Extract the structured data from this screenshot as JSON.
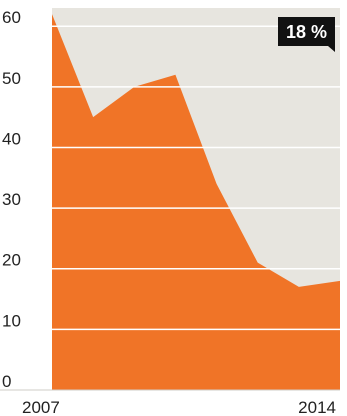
{
  "chart_data": {
    "type": "area",
    "x": [
      2007,
      2008,
      2009,
      2010,
      2011,
      2012,
      2013,
      2014
    ],
    "series": [
      {
        "values": [
          62,
          45,
          50,
          52,
          34,
          21,
          17,
          18
        ]
      }
    ],
    "xlim": [
      2007,
      2014
    ],
    "ylim": [
      0,
      63
    ],
    "yticks": [
      0,
      10,
      20,
      30,
      40,
      50,
      60
    ],
    "xtick_labels": [
      "2007",
      "2014"
    ],
    "grid": true,
    "colors": {
      "area": "#f07427",
      "plot_background": "#e7e5df",
      "gridline": "#ffffff",
      "callout_background": "#111111",
      "callout_text": "#ffffff"
    },
    "annotation": {
      "label": "18 %",
      "x": 2014,
      "y": 18
    }
  }
}
